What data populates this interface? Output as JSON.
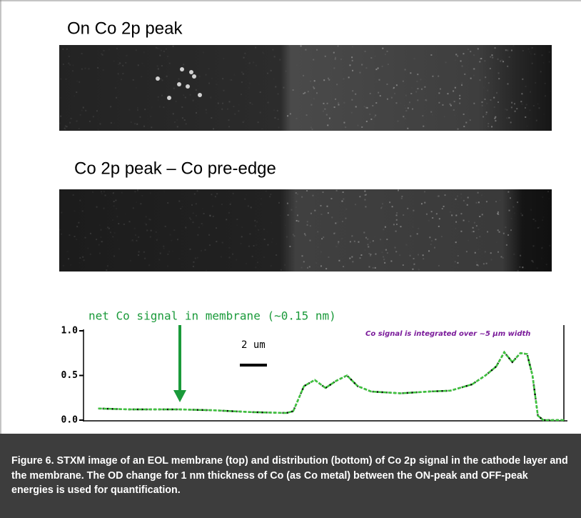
{
  "panels": [
    {
      "label": "On Co 2p peak"
    },
    {
      "label": "Co 2p peak – Co pre-edge"
    }
  ],
  "chart_data": {
    "type": "line",
    "x": [
      1.1,
      3.4,
      7.1,
      9.7,
      12.4,
      15.1,
      15.6,
      16.4,
      17.2,
      18.0,
      18.8,
      19.6,
      20.4,
      21.4,
      23.6,
      25.7,
      27.3,
      28.9,
      29.9,
      30.7,
      31.3,
      31.9,
      32.5,
      33.0,
      33.4,
      33.8,
      34.2,
      35.8
    ],
    "series": [
      {
        "color": "#3ec43e",
        "values": [
          0.13,
          0.12,
          0.12,
          0.11,
          0.09,
          0.08,
          0.1,
          0.38,
          0.45,
          0.36,
          0.44,
          0.5,
          0.38,
          0.32,
          0.3,
          0.32,
          0.33,
          0.4,
          0.5,
          0.6,
          0.76,
          0.65,
          0.75,
          0.74,
          0.5,
          0.05,
          0,
          0
        ]
      }
    ],
    "xlim": [
      0,
      36
    ],
    "ylim": [
      0,
      1
    ],
    "yticks": [
      {
        "value": 0,
        "label": "0.0"
      },
      {
        "value": 0.5,
        "label": "0.5"
      },
      {
        "value": 1,
        "label": "1.0"
      }
    ],
    "annotations": [
      "net Co signal in membrane (~0.15 nm)",
      "2 um",
      "Co signal is integrated over ~5 µm width"
    ]
  },
  "caption": "Figure 6. STXM image of an EOL membrane (top) and distribution (bottom) of Co 2p signal in the cathode layer and the membrane. The OD change for 1 nm thickness of Co (as Co metal) between the ON-peak and OFF-peak energies is used for quantification."
}
